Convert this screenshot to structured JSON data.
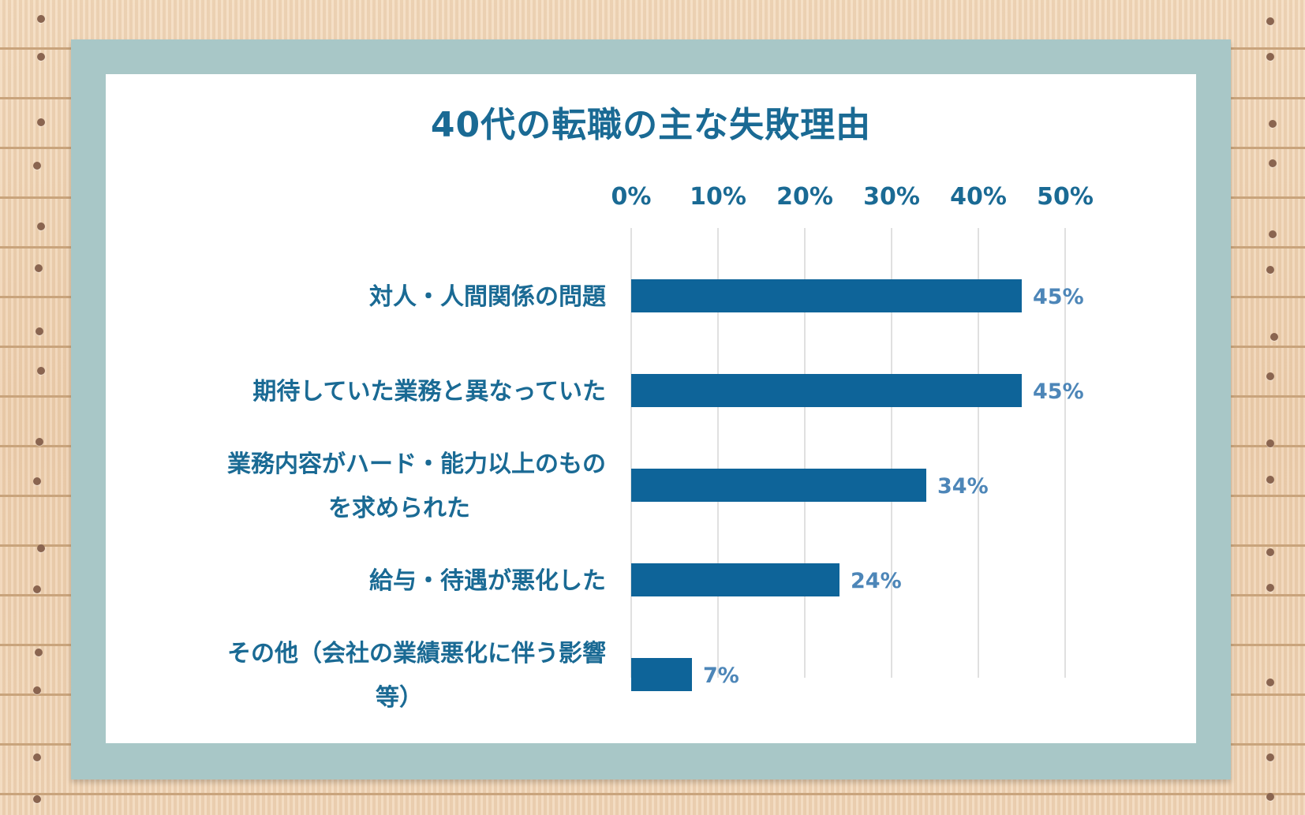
{
  "chart_data": {
    "type": "bar",
    "orientation": "horizontal",
    "title": "40代の転職の主な失敗理由",
    "categories": [
      [
        "対人・人間関係の問題"
      ],
      [
        "期待していた業務と異なっていた"
      ],
      [
        "業務内容がハード・能力以上のもの",
        "を求められた"
      ],
      [
        "給与・待遇が悪化した"
      ],
      [
        "その他（会社の業績悪化に伴う影響",
        "等）"
      ]
    ],
    "values": [
      45,
      45,
      34,
      24,
      7
    ],
    "value_labels": [
      "45%",
      "45%",
      "34%",
      "24%",
      "7%"
    ],
    "xlim": [
      0,
      50
    ],
    "x_ticks": [
      0,
      10,
      20,
      30,
      40,
      50
    ],
    "x_tick_labels": [
      "0%",
      "10%",
      "20%",
      "30%",
      "40%",
      "50%"
    ],
    "x_axis_position": "top",
    "grid": true,
    "colors": {
      "bar": "#0e6499",
      "title": "#1a6a94",
      "tick": "#1a6a94",
      "category": "#1a6a94",
      "value_label": "#4d86b8",
      "grid": "#d6d6d6"
    }
  }
}
